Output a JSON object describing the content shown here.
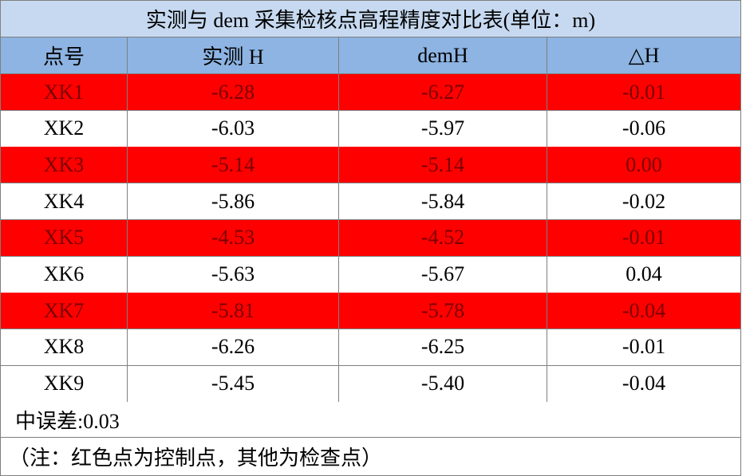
{
  "title": "实测与 dem 采集检核点高程精度对比表(单位：m)",
  "header": [
    "点号",
    "实测 H",
    "demH",
    "△H"
  ],
  "highlight_color": "#ff0000",
  "rows": [
    {
      "cells": [
        "XK1",
        "-6.28",
        "-6.27",
        "-0.01"
      ],
      "highlight": true
    },
    {
      "cells": [
        "XK2",
        "-6.03",
        "-5.97",
        "-0.06"
      ],
      "highlight": false
    },
    {
      "cells": [
        "XK3",
        "-5.14",
        "-5.14",
        "0.00"
      ],
      "highlight": true
    },
    {
      "cells": [
        "XK4",
        "-5.86",
        "-5.84",
        "-0.02"
      ],
      "highlight": false
    },
    {
      "cells": [
        "XK5",
        "-4.53",
        "-4.52",
        "-0.01"
      ],
      "highlight": true
    },
    {
      "cells": [
        "XK6",
        "-5.63",
        "-5.67",
        "0.04"
      ],
      "highlight": false
    },
    {
      "cells": [
        "XK7",
        "-5.81",
        "-5.78",
        "-0.04"
      ],
      "highlight": true
    },
    {
      "cells": [
        "XK8",
        "-6.26",
        "-6.25",
        "-0.01"
      ],
      "highlight": false
    },
    {
      "cells": [
        "XK9",
        "-5.45",
        "-5.40",
        "-0.04"
      ],
      "highlight": false
    }
  ],
  "summary": "中误差:0.03",
  "note": "（注：红色点为控制点，其他为检查点）"
}
